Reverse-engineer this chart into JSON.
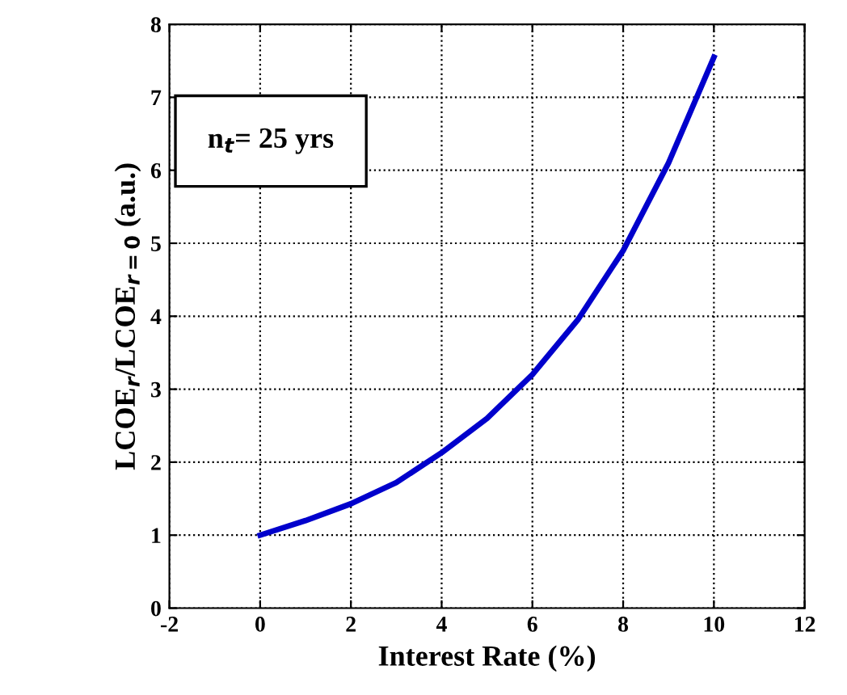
{
  "chart_data": {
    "type": "line",
    "xlabel": "Interest Rate (%)",
    "ylabel": "LCOE$_{r}$/LCOE$_{r=0}$ (a.u.)",
    "annotations": [
      "n$_{t}$= 25 yrs"
    ],
    "x": [
      0,
      1,
      2,
      3,
      4,
      5,
      6,
      7,
      8,
      9,
      10
    ],
    "series": [
      {
        "color": "#0000cc",
        "values": [
          1.0,
          1.2,
          1.43,
          1.72,
          2.13,
          2.6,
          3.2,
          3.95,
          4.9,
          6.1,
          7.55
        ]
      }
    ],
    "xlim": [
      -2,
      12
    ],
    "ylim": [
      0,
      8
    ],
    "xticks": [
      -2,
      0,
      2,
      4,
      6,
      8,
      10,
      12
    ],
    "yticks": [
      0,
      1,
      2,
      3,
      4,
      5,
      6,
      7,
      8
    ],
    "grid": true,
    "line_style": "solid",
    "marker": "none"
  }
}
